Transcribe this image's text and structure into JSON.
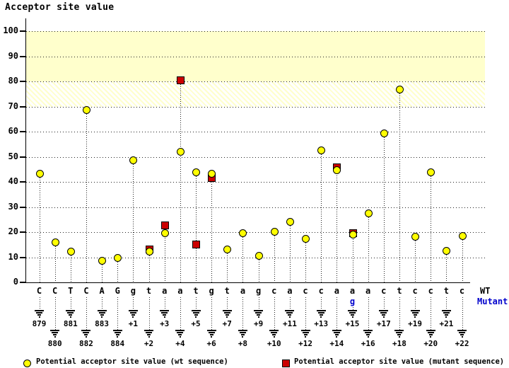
{
  "title": "Acceptor site value",
  "labels": {
    "wt_row": "WT",
    "mutant_row": "Mutant"
  },
  "legend": {
    "wt": "Potential acceptor site value (wt sequence)",
    "mutant": "Potential acceptor site value (mutant sequence)"
  },
  "colors": {
    "wt_marker": "#FFFF00",
    "mutant_marker": "#CC0000",
    "band": "#FFFFCC",
    "mutant_text": "#0000CC",
    "axis": "#000000"
  },
  "chart_data": {
    "type": "scatter",
    "title": "Acceptor site value",
    "ylabel": "Acceptor site value",
    "ylim": [
      0,
      100
    ],
    "y_ticks": [
      0,
      10,
      20,
      30,
      40,
      50,
      60,
      70,
      80,
      90,
      100
    ],
    "grid": "dotted-horizontal",
    "shaded_bands": [
      {
        "from": 80,
        "to": 100,
        "style": "solid"
      },
      {
        "from": 70,
        "to": 80,
        "style": "hatch"
      }
    ],
    "legend_position": "bottom",
    "series_names": [
      "wt",
      "mutant"
    ],
    "points": [
      {
        "letter": "C",
        "pos": "879",
        "wt": 43.5,
        "mutant": null,
        "mutant_letter": null
      },
      {
        "letter": "C",
        "pos": "880",
        "wt": 16.0,
        "mutant": null,
        "mutant_letter": null
      },
      {
        "letter": "T",
        "pos": "881",
        "wt": 12.5,
        "mutant": null,
        "mutant_letter": null
      },
      {
        "letter": "C",
        "pos": "882",
        "wt": 68.7,
        "mutant": null,
        "mutant_letter": null
      },
      {
        "letter": "A",
        "pos": "883",
        "wt": 8.8,
        "mutant": null,
        "mutant_letter": null
      },
      {
        "letter": "G",
        "pos": "884",
        "wt": 9.9,
        "mutant": null,
        "mutant_letter": null
      },
      {
        "letter": "g",
        "pos": "+1",
        "wt": 48.7,
        "mutant": null,
        "mutant_letter": null
      },
      {
        "letter": "t",
        "pos": "+2",
        "wt": 12.3,
        "mutant": 13.2,
        "mutant_letter": null
      },
      {
        "letter": "a",
        "pos": "+3",
        "wt": 19.8,
        "mutant": 22.8,
        "mutant_letter": null
      },
      {
        "letter": "a",
        "pos": "+4",
        "wt": 52.0,
        "mutant": 80.7,
        "mutant_letter": null
      },
      {
        "letter": "t",
        "pos": "+5",
        "wt": 44.0,
        "mutant": 15.3,
        "mutant_letter": null
      },
      {
        "letter": "g",
        "pos": "+6",
        "wt": 43.5,
        "mutant": 41.8,
        "mutant_letter": null
      },
      {
        "letter": "t",
        "pos": "+7",
        "wt": 13.3,
        "mutant": null,
        "mutant_letter": null
      },
      {
        "letter": "a",
        "pos": "+8",
        "wt": 19.7,
        "mutant": null,
        "mutant_letter": null
      },
      {
        "letter": "g",
        "pos": "+9",
        "wt": 10.7,
        "mutant": null,
        "mutant_letter": null
      },
      {
        "letter": "c",
        "pos": "+10",
        "wt": 20.2,
        "mutant": null,
        "mutant_letter": null
      },
      {
        "letter": "a",
        "pos": "+11",
        "wt": 24.3,
        "mutant": null,
        "mutant_letter": null
      },
      {
        "letter": "c",
        "pos": "+12",
        "wt": 17.4,
        "mutant": null,
        "mutant_letter": null
      },
      {
        "letter": "c",
        "pos": "+13",
        "wt": 52.6,
        "mutant": null,
        "mutant_letter": null
      },
      {
        "letter": "a",
        "pos": "+14",
        "wt": 44.8,
        "mutant": 45.8,
        "mutant_letter": null
      },
      {
        "letter": "a",
        "pos": "+15",
        "wt": 19.2,
        "mutant": 19.8,
        "mutant_letter": "g"
      },
      {
        "letter": "a",
        "pos": "+16",
        "wt": 27.7,
        "mutant": null,
        "mutant_letter": null
      },
      {
        "letter": "c",
        "pos": "+17",
        "wt": 59.5,
        "mutant": null,
        "mutant_letter": null
      },
      {
        "letter": "t",
        "pos": "+18",
        "wt": 77.0,
        "mutant": null,
        "mutant_letter": null
      },
      {
        "letter": "c",
        "pos": "+19",
        "wt": 18.3,
        "mutant": null,
        "mutant_letter": null
      },
      {
        "letter": "c",
        "pos": "+20",
        "wt": 43.9,
        "mutant": null,
        "mutant_letter": null
      },
      {
        "letter": "t",
        "pos": "+21",
        "wt": 12.6,
        "mutant": null,
        "mutant_letter": null
      },
      {
        "letter": "c",
        "pos": "+22",
        "wt": 18.5,
        "mutant": null,
        "mutant_letter": null
      }
    ]
  }
}
